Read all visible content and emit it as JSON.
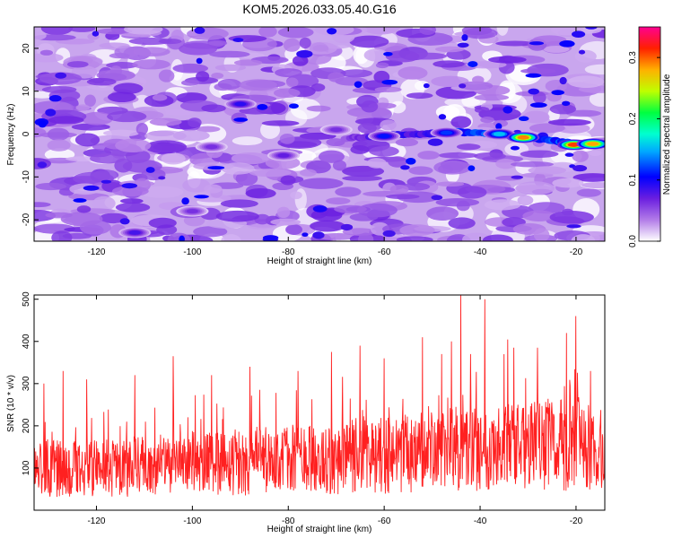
{
  "figure_title": "KOM5.2026.033.05.40.G16",
  "chart_data": [
    {
      "type": "heatmap",
      "title": "KOM5.2026.033.05.40.G16",
      "xlabel": "Height of straight line (km)",
      "ylabel": "Frequency (Hz)",
      "xlim": [
        -133,
        -14
      ],
      "ylim": [
        -25,
        25
      ],
      "xticks": [
        -120,
        -100,
        -80,
        -60,
        -40,
        -20
      ],
      "yticks": [
        -20,
        -10,
        0,
        10,
        20
      ],
      "grid": false,
      "colorbar": {
        "label": "Normalized spectral amplitude",
        "range": [
          0.0,
          0.35
        ],
        "ticks": [
          0.0,
          0.1,
          0.2,
          0.3
        ],
        "colormap": [
          "#ffffff",
          "#8a2be2",
          "#0000ff",
          "#00ffff",
          "#00ff00",
          "#ffff00",
          "#ff8000",
          "#ff0000",
          "#ff0080"
        ]
      },
      "background_level": 0.03,
      "ridge": {
        "description": "frequency trace of signal",
        "points": [
          {
            "x": -68,
            "y": -1.0,
            "amp": 0.05
          },
          {
            "x": -60,
            "y": -0.3,
            "amp": 0.1
          },
          {
            "x": -52,
            "y": 0.0,
            "amp": 0.08
          },
          {
            "x": -45,
            "y": 0.5,
            "amp": 0.13
          },
          {
            "x": -37,
            "y": 0.0,
            "amp": 0.16
          },
          {
            "x": -31,
            "y": -0.8,
            "amp": 0.3
          },
          {
            "x": -25,
            "y": -1.5,
            "amp": 0.14
          },
          {
            "x": -20,
            "y": -2.3,
            "amp": 0.33
          },
          {
            "x": -16,
            "y": -2.2,
            "amp": 0.3
          }
        ]
      },
      "hotspots": [
        {
          "x": -90,
          "y": 7,
          "amp": 0.1
        },
        {
          "x": -60,
          "y": -0.5,
          "amp": 0.12
        },
        {
          "x": -47,
          "y": 0.3,
          "amp": 0.13
        },
        {
          "x": -36,
          "y": 0.0,
          "amp": 0.17
        },
        {
          "x": -31,
          "y": -0.8,
          "amp": 0.32
        },
        {
          "x": -20.5,
          "y": -2.5,
          "amp": 0.34
        },
        {
          "x": -16.5,
          "y": -2.3,
          "amp": 0.31
        },
        {
          "x": -112,
          "y": -23,
          "amp": 0.09
        },
        {
          "x": -96,
          "y": -3,
          "amp": 0.07
        },
        {
          "x": -100,
          "y": -18,
          "amp": 0.07
        },
        {
          "x": -81,
          "y": -5,
          "amp": 0.08
        },
        {
          "x": -70,
          "y": 1,
          "amp": 0.07
        }
      ]
    },
    {
      "type": "line",
      "xlabel": "Height of straight line (km)",
      "ylabel": "SNR (10 * v/v)",
      "xlim": [
        -133,
        -14
      ],
      "ylim": [
        0,
        510
      ],
      "xticks": [
        -120,
        -100,
        -80,
        -60,
        -40,
        -20
      ],
      "yticks": [
        100,
        200,
        300,
        400,
        500
      ],
      "grid": false,
      "series": [
        {
          "name": "SNR",
          "color": "#ff2020",
          "envelope_x": [
            -133,
            -120,
            -100,
            -80,
            -60,
            -40,
            -20,
            -14
          ],
          "envelope_y": [
            100,
            100,
            110,
            120,
            130,
            150,
            155,
            140
          ],
          "peaks": [
            {
              "x": -131,
              "y": 300
            },
            {
              "x": -127,
              "y": 330
            },
            {
              "x": -122,
              "y": 310
            },
            {
              "x": -112,
              "y": 320
            },
            {
              "x": -104,
              "y": 365
            },
            {
              "x": -96,
              "y": 320
            },
            {
              "x": -88,
              "y": 340
            },
            {
              "x": -78,
              "y": 330
            },
            {
              "x": -71,
              "y": 375
            },
            {
              "x": -65,
              "y": 390
            },
            {
              "x": -60,
              "y": 360
            },
            {
              "x": -52,
              "y": 410
            },
            {
              "x": -48,
              "y": 370
            },
            {
              "x": -46,
              "y": 400
            },
            {
              "x": -44,
              "y": 510
            },
            {
              "x": -42,
              "y": 370
            },
            {
              "x": -39,
              "y": 500
            },
            {
              "x": -33,
              "y": 385
            },
            {
              "x": -28,
              "y": 385
            },
            {
              "x": -22,
              "y": 420
            },
            {
              "x": -20,
              "y": 460
            },
            {
              "x": -17,
              "y": 330
            }
          ]
        }
      ]
    }
  ]
}
